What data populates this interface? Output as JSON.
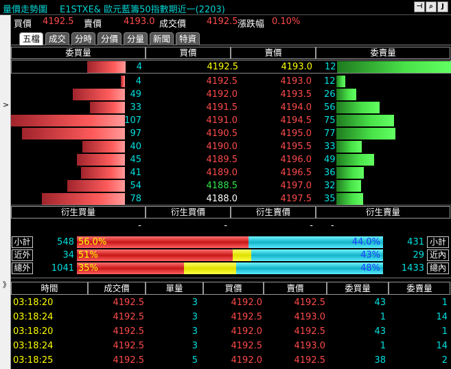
{
  "window": {
    "title": "量價走勢圖",
    "instrument": "E1STXE& 歐元藍籌50指數期近一(2203)",
    "buttons": [
      "⊣",
      "🔍",
      "J"
    ]
  },
  "quote": {
    "buy_label": "買價",
    "buy_value": "4192.5",
    "sell_label": "賣價",
    "sell_value": "4193.0",
    "last_label": "成交價",
    "last_value": "4192.5",
    "change_label": "漲跌幅",
    "change_value": "0.10%"
  },
  "tabs": [
    "五檔",
    "成交",
    "分時",
    "分價",
    "分量",
    "新聞",
    "特資"
  ],
  "active_tab": "五檔",
  "depth_headers": [
    "委買量",
    "買價",
    "賣價",
    "委賣量"
  ],
  "best": {
    "bid_qty": 4,
    "bid": "4192.5",
    "ask": "4193.0",
    "ask_qty": 12
  },
  "depth_rows": [
    {
      "bid_qty": 4,
      "bid": "4192.5",
      "ask": "4193.0",
      "ask_qty": 12
    },
    {
      "bid_qty": 49,
      "bid": "4192.0",
      "ask": "4193.5",
      "ask_qty": 26
    },
    {
      "bid_qty": 33,
      "bid": "4191.5",
      "ask": "4194.0",
      "ask_qty": 56
    },
    {
      "bid_qty": 107,
      "bid": "4191.0",
      "ask": "4194.5",
      "ask_qty": 75
    },
    {
      "bid_qty": 97,
      "bid": "4190.5",
      "ask": "4195.0",
      "ask_qty": 77
    },
    {
      "bid_qty": 40,
      "bid": "4190.0",
      "ask": "4195.5",
      "ask_qty": 33
    },
    {
      "bid_qty": 45,
      "bid": "4189.5",
      "ask": "4196.0",
      "ask_qty": 49
    },
    {
      "bid_qty": 41,
      "bid": "4189.0",
      "ask": "4196.5",
      "ask_qty": 36
    },
    {
      "bid_qty": 54,
      "bid": "4188.5",
      "ask": "4197.0",
      "ask_qty": 32
    },
    {
      "bid_qty": 78,
      "bid": "4188.0",
      "ask": "4197.5",
      "ask_qty": 35
    }
  ],
  "derived_headers": [
    "衍生買量",
    "衍生買價",
    "衍生賣價",
    "衍生賣量"
  ],
  "derived_values": [
    "-",
    "-",
    "-",
    "-"
  ],
  "summary": [
    {
      "left_label": "小計",
      "left_value": "548",
      "red_pct": "56.0%",
      "yellow_frac": 0,
      "red_frac": 0.56,
      "cyan_pct": "44.0%",
      "right_value": "431",
      "right_label": "小計"
    },
    {
      "left_label": "近外",
      "left_value": "34",
      "red_pct": "51%",
      "yellow_frac": 0.06,
      "red_frac": 0.51,
      "cyan_pct": "43%",
      "right_value": "29",
      "right_label": "近內"
    },
    {
      "left_label": "總外",
      "left_value": "1041",
      "red_pct": "35%",
      "yellow_frac": 0.17,
      "red_frac": 0.35,
      "cyan_pct": "48%",
      "right_value": "1433",
      "right_label": "總內"
    }
  ],
  "trade_headers": [
    "時間",
    "成交價",
    "單量",
    "買價",
    "賣價",
    "委買量",
    "委賣量"
  ],
  "trades": [
    {
      "time": "03:18:20",
      "price": "4192.5",
      "vol": "3",
      "bid": "4192.0",
      "ask": "4192.5",
      "bid_qty": "43",
      "ask_qty": "1"
    },
    {
      "time": "03:18:24",
      "price": "4192.5",
      "vol": "3",
      "bid": "4192.5",
      "ask": "4193.0",
      "bid_qty": "1",
      "ask_qty": "14"
    },
    {
      "time": "03:18:20",
      "price": "4192.5",
      "vol": "3",
      "bid": "4192.0",
      "ask": "4192.5",
      "bid_qty": "43",
      "ask_qty": "1"
    },
    {
      "time": "03:18:24",
      "price": "4192.5",
      "vol": "3",
      "bid": "4192.5",
      "ask": "4193.0",
      "bid_qty": "1",
      "ask_qty": "14"
    },
    {
      "time": "03:18:25",
      "price": "4192.5",
      "vol": "5",
      "bid": "4192.0",
      "ask": "4192.5",
      "bid_qty": "38",
      "ask_qty": "2"
    }
  ],
  "colors": {
    "bid_text": "#ff4b4b",
    "ask_text": "#ff4b4b",
    "qty_text": "#00e0e0",
    "highlight_green": "#31e84a",
    "yellow": "#ffff00"
  }
}
